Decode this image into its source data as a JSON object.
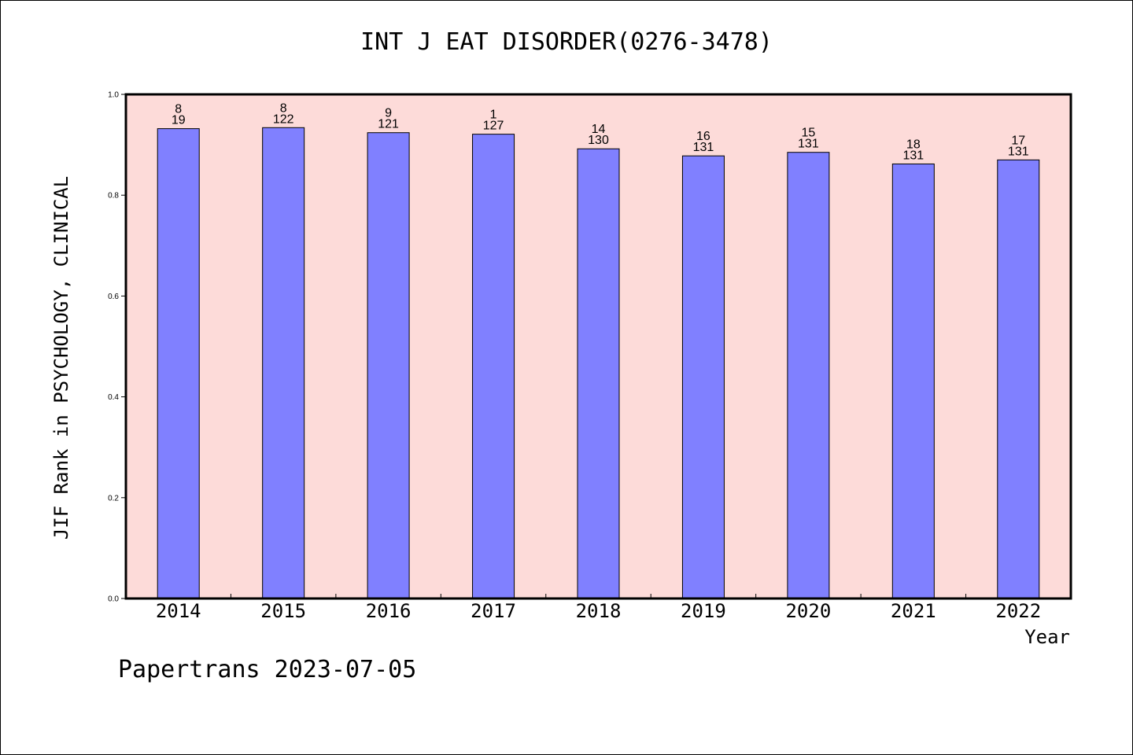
{
  "colors": {
    "plot_background": "#fddbd9",
    "bar_fill": "#8080ff",
    "bar_stroke": "#000000"
  },
  "chart_data": {
    "type": "bar",
    "title": "INT J EAT DISORDER(0276-3478)",
    "xlabel": "Year",
    "ylabel": "JIF Rank in PSYCHOLOGY, CLINICAL",
    "ylim": [
      0,
      1.0
    ],
    "yticks": [
      "0.0",
      "0.2",
      "0.4",
      "0.6",
      "0.8",
      "1.0"
    ],
    "grid": false,
    "categories": [
      "2014",
      "2015",
      "2016",
      "2017",
      "2018",
      "2019",
      "2020",
      "2021",
      "2022"
    ],
    "values": [
      0.932,
      0.934,
      0.924,
      0.921,
      0.892,
      0.878,
      0.885,
      0.862,
      0.87
    ],
    "rank": [
      "8",
      "8",
      "9",
      "1",
      "14",
      "16",
      "15",
      "18",
      "17"
    ],
    "total": [
      "19",
      "122",
      "121",
      "127",
      "130",
      "131",
      "131",
      "131",
      "131"
    ]
  },
  "footer": {
    "note": "Papertrans 2023-07-05"
  }
}
